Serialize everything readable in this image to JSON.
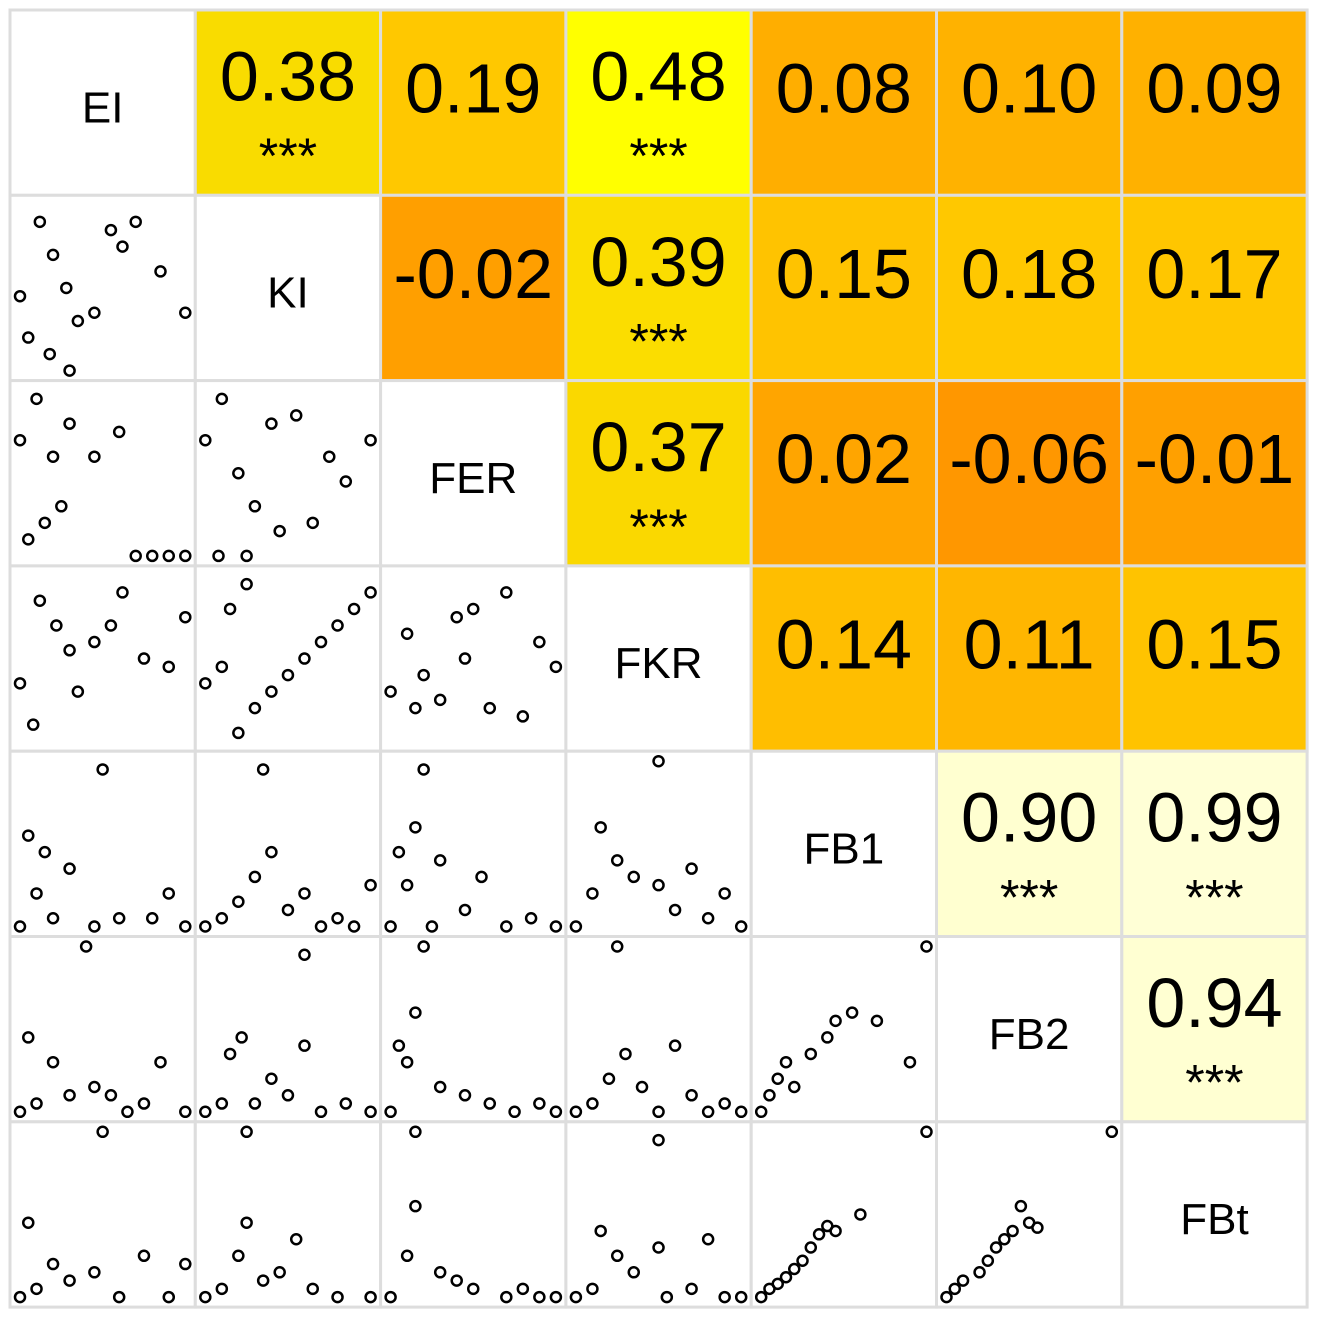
{
  "chart_data": {
    "type": "correlation-matrix",
    "variables": [
      "EI",
      "KI",
      "FER",
      "FKR",
      "FB1",
      "FB2",
      "FBt"
    ],
    "correlations": [
      [
        0.38,
        0.19,
        0.48,
        0.08,
        0.1,
        0.09
      ],
      [
        -0.02,
        0.39,
        0.15,
        0.18,
        0.17
      ],
      [
        0.37,
        0.02,
        -0.06,
        -0.01
      ],
      [
        0.14,
        0.11,
        0.15
      ],
      [
        0.9,
        0.99
      ],
      [
        0.94
      ]
    ],
    "value_labels": [
      [
        "0.38",
        "0.19",
        "0.48",
        "0.08",
        "0.10",
        "0.09"
      ],
      [
        "-0.02",
        "0.39",
        "0.15",
        "0.18",
        "0.17"
      ],
      [
        "0.37",
        "0.02",
        "-0.06",
        "-0.01"
      ],
      [
        "0.14",
        "0.11",
        "0.15"
      ],
      [
        "0.90",
        "0.99"
      ],
      [
        "0.94"
      ]
    ],
    "stars": [
      [
        "***",
        null,
        "***",
        null,
        null,
        null
      ],
      [
        null,
        "***",
        null,
        null,
        null
      ],
      [
        "***",
        null,
        null,
        null
      ],
      [
        null,
        null,
        null
      ],
      [
        "***",
        "***"
      ],
      [
        "***"
      ]
    ],
    "colors": [
      [
        "#f9dc00",
        "#ffc800",
        "#ffff00",
        "#ffae00",
        "#ffb200",
        "#ffb100"
      ],
      [
        "#ff9f00",
        "#fbdd00",
        "#ffc300",
        "#ffc800",
        "#ffc600"
      ],
      [
        "#fad800",
        "#ffa500",
        "#ff9700",
        "#ffa000"
      ],
      [
        "#ffbe00",
        "#ffb600",
        "#ffc300"
      ],
      [
        "#ffffd0",
        "#ffffd6"
      ],
      [
        "#ffffd2"
      ]
    ],
    "panels": [
      [
        {
          "x": [
            0.0,
            0.12,
            0.2,
            0.28,
            0.35,
            0.55,
            0.62,
            0.7,
            0.85,
            1.0,
            0.05,
            0.18,
            0.45,
            0.3
          ],
          "y": [
            0.45,
            0.9,
            0.7,
            0.5,
            0.3,
            0.85,
            0.75,
            0.9,
            0.6,
            0.35,
            0.2,
            0.1,
            0.35,
            0.0
          ]
        }
      ],
      [
        {
          "x": [
            0.0,
            0.1,
            0.2,
            0.3,
            0.45,
            0.6,
            0.7,
            0.8,
            0.9,
            1.0,
            0.05,
            0.25,
            0.15
          ],
          "y": [
            0.7,
            0.95,
            0.6,
            0.8,
            0.6,
            0.75,
            0.0,
            0.0,
            0.0,
            0.0,
            0.1,
            0.3,
            0.2
          ]
        },
        {
          "x": [
            0.0,
            0.1,
            0.2,
            0.25,
            0.4,
            0.55,
            0.65,
            0.75,
            0.85,
            1.0,
            0.08,
            0.3,
            0.45
          ],
          "y": [
            0.7,
            0.95,
            0.5,
            0.0,
            0.8,
            0.85,
            0.2,
            0.6,
            0.45,
            0.7,
            0.0,
            0.3,
            0.15
          ]
        }
      ],
      [
        {
          "x": [
            0.0,
            0.12,
            0.22,
            0.3,
            0.45,
            0.55,
            0.62,
            0.75,
            0.9,
            1.0,
            0.08,
            0.35
          ],
          "y": [
            0.35,
            0.85,
            0.7,
            0.55,
            0.6,
            0.7,
            0.9,
            0.5,
            0.45,
            0.75,
            0.1,
            0.3
          ]
        },
        {
          "x": [
            0.0,
            0.1,
            0.2,
            0.3,
            0.4,
            0.5,
            0.6,
            0.7,
            0.8,
            0.9,
            1.0,
            0.15,
            0.25
          ],
          "y": [
            0.35,
            0.45,
            0.05,
            0.2,
            0.3,
            0.4,
            0.5,
            0.6,
            0.7,
            0.8,
            0.9,
            0.8,
            0.95
          ]
        },
        {
          "x": [
            0.0,
            0.1,
            0.2,
            0.3,
            0.4,
            0.5,
            0.6,
            0.7,
            0.8,
            0.9,
            1.0,
            0.45,
            0.15
          ],
          "y": [
            0.3,
            0.65,
            0.4,
            0.25,
            0.75,
            0.8,
            0.2,
            0.9,
            0.15,
            0.6,
            0.45,
            0.5,
            0.2
          ]
        }
      ],
      [
        {
          "x": [
            0.0,
            0.1,
            0.2,
            0.3,
            0.45,
            0.6,
            0.8,
            1.0,
            0.05,
            0.15,
            0.5,
            0.9
          ],
          "y": [
            0.0,
            0.2,
            0.05,
            0.35,
            0.0,
            0.05,
            0.05,
            0.0,
            0.55,
            0.45,
            0.95,
            0.2
          ]
        },
        {
          "x": [
            0.0,
            0.1,
            0.2,
            0.3,
            0.4,
            0.5,
            0.6,
            0.7,
            0.8,
            0.9,
            1.0,
            0.35
          ],
          "y": [
            0.0,
            0.05,
            0.15,
            0.3,
            0.45,
            0.1,
            0.2,
            0.0,
            0.05,
            0.0,
            0.25,
            0.95
          ]
        },
        {
          "x": [
            0.0,
            0.1,
            0.15,
            0.2,
            0.3,
            0.45,
            0.55,
            0.7,
            0.85,
            1.0,
            0.05,
            0.25
          ],
          "y": [
            0.0,
            0.25,
            0.6,
            0.95,
            0.4,
            0.1,
            0.3,
            0.0,
            0.05,
            0.0,
            0.45,
            0.0
          ]
        },
        {
          "x": [
            0.0,
            0.1,
            0.15,
            0.25,
            0.35,
            0.5,
            0.6,
            0.7,
            0.8,
            0.9,
            1.0,
            0.5
          ],
          "y": [
            0.0,
            0.2,
            0.6,
            0.4,
            0.3,
            0.25,
            0.1,
            0.35,
            0.05,
            0.2,
            0.0,
            1.0
          ]
        }
      ],
      [
        {
          "x": [
            0.0,
            0.05,
            0.1,
            0.2,
            0.3,
            0.45,
            0.55,
            0.65,
            0.75,
            0.85,
            1.0,
            0.4
          ],
          "y": [
            0.0,
            0.45,
            0.05,
            0.3,
            0.1,
            0.15,
            0.1,
            0.0,
            0.05,
            0.3,
            0.0,
            1.0
          ]
        },
        {
          "x": [
            0.0,
            0.1,
            0.15,
            0.22,
            0.3,
            0.4,
            0.5,
            0.6,
            0.7,
            0.85,
            1.0,
            0.6
          ],
          "y": [
            0.0,
            0.05,
            0.35,
            0.45,
            0.05,
            0.2,
            0.1,
            0.4,
            0.0,
            0.05,
            0.0,
            0.95
          ]
        },
        {
          "x": [
            0.0,
            0.1,
            0.15,
            0.3,
            0.45,
            0.6,
            0.75,
            0.9,
            1.0,
            0.05,
            0.2
          ],
          "y": [
            0.0,
            0.3,
            0.6,
            0.15,
            0.1,
            0.05,
            0.0,
            0.05,
            0.0,
            0.4,
            1.0
          ]
        },
        {
          "x": [
            0.0,
            0.1,
            0.2,
            0.3,
            0.4,
            0.5,
            0.6,
            0.7,
            0.8,
            0.9,
            1.0,
            0.25
          ],
          "y": [
            0.0,
            0.05,
            0.2,
            0.35,
            0.15,
            0.0,
            0.4,
            0.1,
            0.0,
            0.05,
            0.0,
            1.0
          ]
        },
        {
          "x": [
            0.0,
            0.05,
            0.1,
            0.15,
            0.2,
            0.3,
            0.4,
            0.45,
            0.55,
            0.7,
            0.9,
            1.0
          ],
          "y": [
            0.0,
            0.1,
            0.2,
            0.3,
            0.15,
            0.35,
            0.45,
            0.55,
            0.6,
            0.55,
            0.3,
            1.0
          ]
        }
      ],
      [
        {
          "x": [
            0.0,
            0.05,
            0.1,
            0.2,
            0.3,
            0.45,
            0.6,
            0.75,
            0.9,
            1.0,
            0.5
          ],
          "y": [
            0.0,
            0.45,
            0.05,
            0.2,
            0.1,
            0.15,
            0.0,
            0.25,
            0.0,
            0.2,
            1.0
          ]
        },
        {
          "x": [
            0.0,
            0.1,
            0.2,
            0.25,
            0.35,
            0.45,
            0.55,
            0.65,
            0.8,
            1.0,
            0.25
          ],
          "y": [
            0.0,
            0.05,
            0.25,
            0.45,
            0.1,
            0.15,
            0.35,
            0.05,
            0.0,
            0.0,
            1.0
          ]
        },
        {
          "x": [
            0.0,
            0.1,
            0.15,
            0.3,
            0.4,
            0.5,
            0.7,
            0.8,
            0.9,
            1.0,
            0.15
          ],
          "y": [
            0.0,
            0.25,
            0.55,
            0.15,
            0.1,
            0.05,
            0.0,
            0.05,
            0.0,
            0.0,
            1.0
          ]
        },
        {
          "x": [
            0.0,
            0.1,
            0.15,
            0.25,
            0.35,
            0.5,
            0.55,
            0.7,
            0.8,
            0.9,
            1.0,
            0.5
          ],
          "y": [
            0.0,
            0.05,
            0.4,
            0.25,
            0.15,
            0.3,
            0.0,
            0.05,
            0.35,
            0.0,
            0.0,
            0.95
          ]
        },
        {
          "x": [
            0.0,
            0.05,
            0.1,
            0.15,
            0.2,
            0.25,
            0.3,
            0.35,
            0.4,
            0.45,
            0.6,
            1.0
          ],
          "y": [
            0.0,
            0.05,
            0.08,
            0.12,
            0.17,
            0.22,
            0.3,
            0.38,
            0.43,
            0.4,
            0.5,
            1.0
          ]
        },
        {
          "x": [
            0.0,
            0.05,
            0.1,
            0.2,
            0.25,
            0.3,
            0.35,
            0.4,
            0.45,
            0.5,
            0.55,
            1.0
          ],
          "y": [
            0.0,
            0.05,
            0.1,
            0.15,
            0.22,
            0.3,
            0.35,
            0.4,
            0.55,
            0.45,
            0.42,
            1.0
          ]
        }
      ]
    ]
  }
}
